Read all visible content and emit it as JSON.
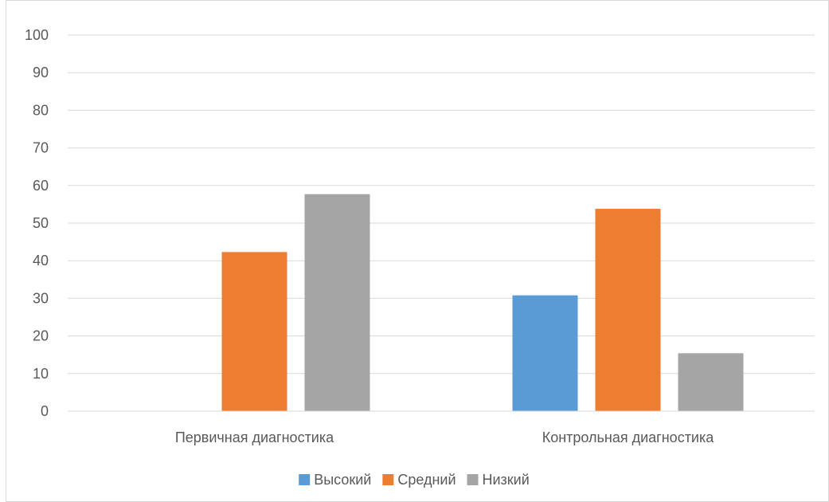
{
  "chart_data": {
    "type": "bar",
    "categories": [
      "Первичная диагностика",
      "Контрольная диагностика"
    ],
    "series": [
      {
        "name": "Высокий",
        "color": "#5b9bd5",
        "values": [
          0,
          30.8
        ]
      },
      {
        "name": "Средний",
        "color": "#ed7d31",
        "values": [
          42.3,
          53.8
        ]
      },
      {
        "name": "Низкий",
        "color": "#a5a5a5",
        "values": [
          57.7,
          15.4
        ]
      }
    ],
    "title": "",
    "xlabel": "",
    "ylabel": "",
    "ylim": [
      0,
      100
    ],
    "yticks": [
      "0",
      "10",
      "20",
      "30",
      "40",
      "50",
      "60",
      "70",
      "80",
      "90",
      "100"
    ],
    "grid": true,
    "gridline_color": "#d9d9d9",
    "legend_position": "bottom"
  }
}
